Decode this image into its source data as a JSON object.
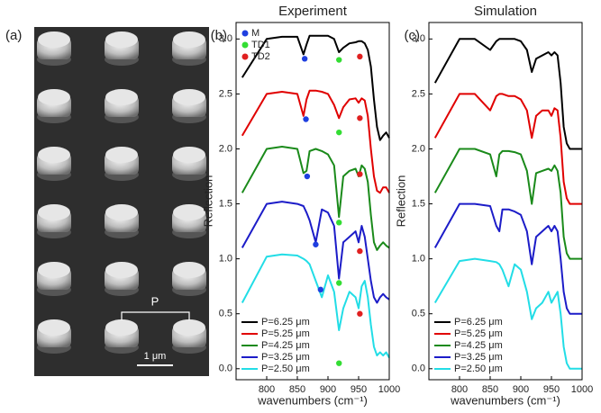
{
  "panel_a": {
    "label": "(a)",
    "period_label": "P",
    "scale_label": "1 μm"
  },
  "chart_data": [
    {
      "type": "line",
      "panel_label": "(b)",
      "title": "Experiment",
      "xlabel": "wavenumbers (cm⁻¹)",
      "ylabel": "Reflection",
      "x": [
        760,
        800,
        825,
        850,
        860,
        865,
        870,
        880,
        890,
        900,
        910,
        918,
        925,
        935,
        945,
        950,
        955,
        960,
        965,
        970,
        975,
        980,
        985,
        990,
        995,
        1000
      ],
      "xlim": [
        750,
        1000
      ],
      "xticks": [
        800,
        850,
        900,
        950,
        1000
      ],
      "ylim": [
        -0.1,
        3.15
      ],
      "yticks": [
        {
          "value": 0,
          "label": "0.0"
        },
        {
          "value": 0.5,
          "label": "0.5"
        },
        {
          "value": 1,
          "label": "1.0"
        },
        {
          "value": 1.5,
          "label": "1.5"
        },
        {
          "value": 2,
          "label": "2.0"
        },
        {
          "value": 2.5,
          "label": "2.5"
        },
        {
          "value": 3,
          "label": "3.0"
        }
      ],
      "legend": "lower left",
      "series": [
        {
          "name": "P=6.25 μm",
          "color": "#000000",
          "values": [
            2.65,
            3.0,
            3.02,
            3.02,
            2.86,
            2.95,
            3.03,
            3.03,
            3.03,
            3.03,
            3.0,
            2.88,
            2.92,
            2.96,
            2.97,
            2.98,
            2.98,
            2.96,
            2.9,
            2.75,
            2.45,
            2.2,
            2.08,
            2.12,
            2.15,
            2.1
          ]
        },
        {
          "name": "P=5.25 μm",
          "color": "#e00000",
          "values": [
            2.12,
            2.5,
            2.52,
            2.5,
            2.3,
            2.45,
            2.53,
            2.53,
            2.52,
            2.5,
            2.4,
            2.28,
            2.38,
            2.45,
            2.46,
            2.42,
            2.46,
            2.44,
            2.3,
            2.0,
            1.75,
            1.62,
            1.6,
            1.65,
            1.65,
            1.6
          ]
        },
        {
          "name": "P=4.25 μm",
          "color": "#1a8a1a",
          "values": [
            1.6,
            2.0,
            2.02,
            2.0,
            1.78,
            1.8,
            1.98,
            2.0,
            1.98,
            1.95,
            1.85,
            1.38,
            1.75,
            1.8,
            1.82,
            1.75,
            1.85,
            1.82,
            1.7,
            1.4,
            1.15,
            1.08,
            1.12,
            1.15,
            1.12,
            1.1
          ]
        },
        {
          "name": "P=3.25 μm",
          "color": "#1c1cc8",
          "values": [
            1.1,
            1.5,
            1.52,
            1.5,
            1.48,
            1.42,
            1.35,
            1.15,
            1.45,
            1.42,
            1.3,
            0.82,
            1.15,
            1.2,
            1.25,
            1.15,
            1.3,
            1.2,
            1.0,
            0.8,
            0.65,
            0.6,
            0.65,
            0.68,
            0.65,
            0.63
          ]
        },
        {
          "name": "P=2.50 μm",
          "color": "#22dde6",
          "values": [
            0.6,
            1.02,
            1.04,
            1.03,
            1.0,
            0.98,
            0.95,
            0.8,
            0.65,
            0.85,
            0.7,
            0.35,
            0.55,
            0.7,
            0.65,
            0.55,
            0.75,
            0.8,
            0.65,
            0.4,
            0.2,
            0.12,
            0.15,
            0.12,
            0.15,
            0.1
          ]
        }
      ],
      "markers": [
        {
          "name": "M",
          "color": "#1f3fe0",
          "x": [
            862,
            864,
            866,
            880,
            888
          ],
          "values": [
            2.82,
            2.27,
            1.75,
            1.13,
            0.72
          ]
        },
        {
          "name": "TD1",
          "color": "#33dd33",
          "x": [
            918,
            918,
            918,
            918,
            918
          ],
          "values": [
            2.81,
            2.15,
            1.33,
            0.78,
            0.05
          ]
        },
        {
          "name": "TD2",
          "color": "#e02020",
          "x": [
            952,
            952,
            952,
            952,
            952
          ],
          "values": [
            2.84,
            2.28,
            1.77,
            1.07,
            0.5
          ]
        }
      ]
    },
    {
      "type": "line",
      "panel_label": "(c)",
      "title": "Simulation",
      "xlabel": "wavenumbers (cm⁻¹)",
      "ylabel": "Reflection",
      "x": [
        760,
        800,
        825,
        850,
        860,
        865,
        870,
        880,
        890,
        900,
        910,
        918,
        925,
        935,
        945,
        950,
        955,
        960,
        965,
        970,
        975,
        980,
        985,
        990,
        995,
        1000
      ],
      "xlim": [
        750,
        1000
      ],
      "xticks": [
        800,
        850,
        900,
        950,
        1000
      ],
      "ylim": [
        -0.1,
        3.15
      ],
      "yticks": [
        {
          "value": 0,
          "label": "0.0"
        },
        {
          "value": 0.5,
          "label": "0.5"
        },
        {
          "value": 1,
          "label": "1.0"
        },
        {
          "value": 1.5,
          "label": "1.5"
        },
        {
          "value": 2,
          "label": "2.0"
        },
        {
          "value": 2.5,
          "label": "2.5"
        },
        {
          "value": 3,
          "label": "3.0"
        }
      ],
      "legend": "lower left",
      "series": [
        {
          "name": "P=6.25 μm",
          "color": "#000000",
          "values": [
            2.6,
            3.0,
            3.0,
            2.9,
            2.98,
            3.0,
            3.0,
            3.0,
            3.0,
            2.98,
            2.9,
            2.7,
            2.82,
            2.85,
            2.88,
            2.85,
            2.88,
            2.85,
            2.6,
            2.2,
            2.05,
            2.0,
            2.0,
            2.0,
            2.0,
            2.0
          ]
        },
        {
          "name": "P=5.25 μm",
          "color": "#e00000",
          "values": [
            2.1,
            2.5,
            2.5,
            2.35,
            2.48,
            2.5,
            2.5,
            2.48,
            2.48,
            2.45,
            2.35,
            2.1,
            2.3,
            2.35,
            2.35,
            2.3,
            2.37,
            2.35,
            2.1,
            1.7,
            1.55,
            1.5,
            1.5,
            1.5,
            1.5,
            1.5
          ]
        },
        {
          "name": "P=4.25 μm",
          "color": "#1a8a1a",
          "values": [
            1.6,
            2.0,
            2.0,
            1.95,
            1.75,
            1.95,
            1.98,
            1.98,
            1.97,
            1.95,
            1.8,
            1.5,
            1.78,
            1.8,
            1.82,
            1.8,
            1.85,
            1.8,
            1.6,
            1.2,
            1.05,
            1.0,
            1.0,
            1.0,
            1.0,
            1.0
          ]
        },
        {
          "name": "P=3.25 μm",
          "color": "#1c1cc8",
          "values": [
            1.1,
            1.5,
            1.5,
            1.48,
            1.3,
            1.25,
            1.45,
            1.45,
            1.43,
            1.4,
            1.25,
            0.95,
            1.2,
            1.25,
            1.3,
            1.25,
            1.3,
            1.25,
            1.0,
            0.7,
            0.55,
            0.5,
            0.5,
            0.5,
            0.5,
            0.5
          ]
        },
        {
          "name": "P=2.50 μm",
          "color": "#22dde6",
          "values": [
            0.6,
            0.98,
            1.0,
            0.98,
            0.97,
            0.95,
            0.9,
            0.75,
            0.95,
            0.9,
            0.7,
            0.45,
            0.55,
            0.6,
            0.7,
            0.6,
            0.65,
            0.7,
            0.5,
            0.2,
            0.05,
            0.0,
            0.0,
            0.0,
            0.0,
            0.0
          ]
        }
      ]
    }
  ]
}
